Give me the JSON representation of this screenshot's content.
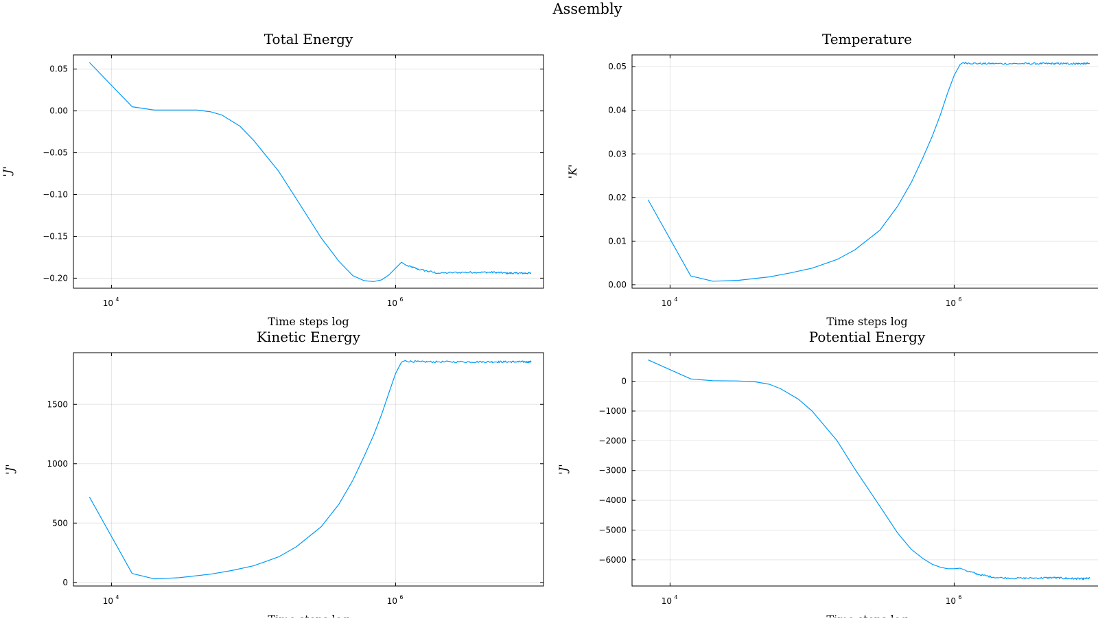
{
  "figure": {
    "title": "Assembly"
  },
  "chart_data": [
    {
      "type": "line",
      "title": "Total Energy",
      "xlabel": "Time steps log",
      "ylabel": "'J'",
      "xscale": "log",
      "xlim": [
        5400,
        11000000
      ],
      "ylim": [
        -0.212,
        0.067
      ],
      "xticks": [
        {
          "base": "10",
          "exp": "4",
          "value": 10000
        },
        {
          "base": "10",
          "exp": "6",
          "value": 1000000
        }
      ],
      "yticks": [
        {
          "value": 0.05,
          "label": "0.05"
        },
        {
          "value": 0.0,
          "label": "0.00"
        },
        {
          "value": -0.05,
          "label": "−0.05"
        },
        {
          "value": -0.1,
          "label": "−0.10"
        },
        {
          "value": -0.15,
          "label": "−0.15"
        },
        {
          "value": -0.2,
          "label": "−0.20"
        }
      ],
      "grid": true,
      "legend": "none",
      "color": "#009af9",
      "series": [
        {
          "x": [
            7000,
            14000,
            20000,
            30000,
            40000,
            50000,
            60000,
            80000,
            100000,
            150000,
            200000,
            300000,
            400000,
            500000,
            600000,
            700000,
            800000,
            900000,
            1000000,
            1100000,
            1200000,
            1500000,
            2000000,
            3000000,
            4000000,
            5000000,
            6000000,
            7000000,
            8000000,
            9000000
          ],
          "y": [
            0.058,
            0.005,
            0.001,
            0.001,
            0.001,
            -0.001,
            -0.005,
            -0.018,
            -0.035,
            -0.072,
            -0.105,
            -0.152,
            -0.18,
            -0.197,
            -0.203,
            -0.204,
            -0.202,
            -0.196,
            -0.188,
            -0.181,
            -0.185,
            -0.19,
            -0.194,
            -0.193,
            -0.193,
            -0.193,
            -0.194,
            -0.194,
            -0.194,
            -0.194
          ]
        }
      ]
    },
    {
      "type": "line",
      "title": "Temperature",
      "xlabel": "Time steps log",
      "ylabel": "'K'",
      "xscale": "log",
      "xlim": [
        5400,
        11000000
      ],
      "ylim": [
        -0.0008,
        0.0527
      ],
      "xticks": [
        {
          "base": "10",
          "exp": "4",
          "value": 10000
        },
        {
          "base": "10",
          "exp": "6",
          "value": 1000000
        }
      ],
      "yticks": [
        {
          "value": 0.05,
          "label": "0.05"
        },
        {
          "value": 0.04,
          "label": "0.04"
        },
        {
          "value": 0.03,
          "label": "0.03"
        },
        {
          "value": 0.02,
          "label": "0.02"
        },
        {
          "value": 0.01,
          "label": "0.01"
        },
        {
          "value": 0.0,
          "label": "0.00"
        }
      ],
      "grid": true,
      "legend": "none",
      "color": "#009af9",
      "series": [
        {
          "x": [
            7000,
            14000,
            20000,
            30000,
            50000,
            70000,
            100000,
            150000,
            200000,
            300000,
            400000,
            500000,
            600000,
            700000,
            800000,
            900000,
            1000000,
            1100000,
            1150000,
            1500000,
            2000000,
            3000000,
            4000000,
            5000000,
            6000000,
            7000000,
            8000000,
            9000000
          ],
          "y": [
            0.0195,
            0.002,
            0.0008,
            0.001,
            0.0018,
            0.0027,
            0.0038,
            0.0058,
            0.008,
            0.0125,
            0.018,
            0.0235,
            0.029,
            0.034,
            0.039,
            0.044,
            0.048,
            0.0505,
            0.0509,
            0.0507,
            0.0507,
            0.0507,
            0.0507,
            0.0507,
            0.0507,
            0.0507,
            0.0507,
            0.0507
          ]
        }
      ]
    },
    {
      "type": "line",
      "title": "Kinetic Energy",
      "xlabel": "Time steps log",
      "ylabel": "'J'",
      "xscale": "log",
      "xlim": [
        5400,
        11000000
      ],
      "ylim": [
        -30,
        1935
      ],
      "xticks": [
        {
          "base": "10",
          "exp": "4",
          "value": 10000
        },
        {
          "base": "10",
          "exp": "6",
          "value": 1000000
        }
      ],
      "yticks": [
        {
          "value": 1500,
          "label": "1500"
        },
        {
          "value": 1000,
          "label": "1000"
        },
        {
          "value": 500,
          "label": "500"
        },
        {
          "value": 0,
          "label": "0"
        }
      ],
      "grid": true,
      "legend": "none",
      "color": "#009af9",
      "series": [
        {
          "x": [
            7000,
            14000,
            20000,
            30000,
            50000,
            70000,
            100000,
            150000,
            200000,
            300000,
            400000,
            500000,
            600000,
            700000,
            800000,
            900000,
            1000000,
            1100000,
            1150000,
            1500000,
            2000000,
            3000000,
            4000000,
            5000000,
            6000000,
            7000000,
            8000000,
            9000000
          ],
          "y": [
            720,
            75,
            30,
            40,
            70,
            100,
            140,
            215,
            300,
            470,
            660,
            860,
            1060,
            1240,
            1420,
            1600,
            1760,
            1855,
            1865,
            1858,
            1858,
            1858,
            1858,
            1858,
            1858,
            1858,
            1858,
            1858
          ]
        }
      ]
    },
    {
      "type": "line",
      "title": "Potential Energy",
      "xlabel": "Time steps log",
      "ylabel": "'J'",
      "xscale": "log",
      "xlim": [
        5400,
        11000000
      ],
      "ylim": [
        -6880,
        960
      ],
      "xticks": [
        {
          "base": "10",
          "exp": "4",
          "value": 10000
        },
        {
          "base": "10",
          "exp": "6",
          "value": 1000000
        }
      ],
      "yticks": [
        {
          "value": 0,
          "label": "0"
        },
        {
          "value": -1000,
          "label": "−1000"
        },
        {
          "value": -2000,
          "label": "−2000"
        },
        {
          "value": -3000,
          "label": "−3000"
        },
        {
          "value": -4000,
          "label": "−4000"
        },
        {
          "value": -5000,
          "label": "−5000"
        },
        {
          "value": -6000,
          "label": "−6000"
        }
      ],
      "grid": true,
      "legend": "none",
      "color": "#009af9",
      "series": [
        {
          "x": [
            7000,
            14000,
            20000,
            30000,
            40000,
            50000,
            60000,
            80000,
            100000,
            150000,
            200000,
            300000,
            400000,
            500000,
            600000,
            700000,
            800000,
            900000,
            1000000,
            1100000,
            1200000,
            1500000,
            2000000,
            3000000,
            4000000,
            5000000,
            6000000,
            7000000,
            8000000,
            9000000
          ],
          "y": [
            720,
            80,
            20,
            10,
            -20,
            -100,
            -250,
            -600,
            -1000,
            -2000,
            -2950,
            -4200,
            -5100,
            -5650,
            -5950,
            -6150,
            -6250,
            -6300,
            -6300,
            -6280,
            -6350,
            -6500,
            -6600,
            -6620,
            -6610,
            -6600,
            -6620,
            -6630,
            -6640,
            -6620
          ]
        }
      ]
    }
  ]
}
